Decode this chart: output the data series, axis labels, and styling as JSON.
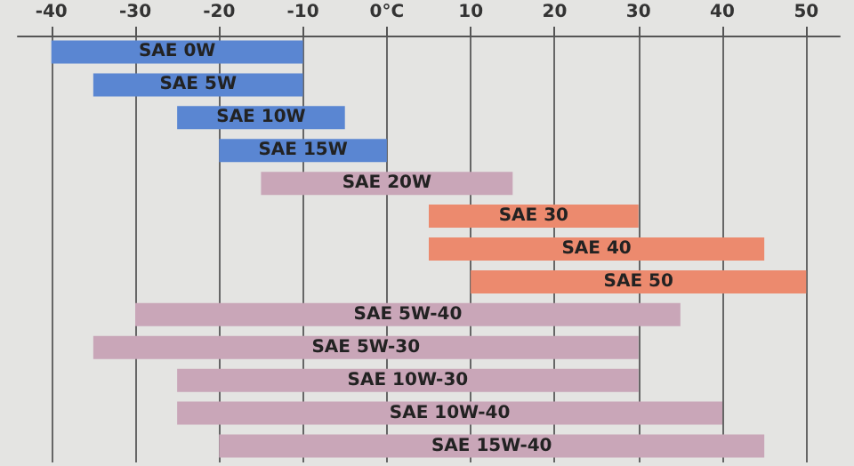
{
  "chart_data": {
    "type": "bar",
    "orientation": "horizontal",
    "categories": [
      "SAE 0W",
      "SAE 5W",
      "SAE 10W",
      "SAE 15W",
      "SAE 20W",
      "SAE 30",
      "SAE 40",
      "SAE 50",
      "SAE 5W-40",
      "SAE 5W-30",
      "SAE 10W-30",
      "SAE 10W-40",
      "SAE 15W-40"
    ],
    "base": [
      -40,
      -35,
      -25,
      -20,
      -15,
      5,
      5,
      10,
      -30,
      -35,
      -25,
      -25,
      -20
    ],
    "values": [
      30,
      25,
      20,
      20,
      30,
      25,
      40,
      40,
      65,
      65,
      55,
      65,
      65
    ],
    "colors": [
      "#5a86d2",
      "#5a86d2",
      "#5a86d2",
      "#5a86d2",
      "#c9a6b8",
      "#ec8a6e",
      "#ec8a6e",
      "#ec8a6e",
      "#c9a6b8",
      "#c9a6b8",
      "#c9a6b8",
      "#c9a6b8",
      "#c9a6b8"
    ],
    "xlim": [
      -44,
      54
    ],
    "xticks": [
      -40,
      -30,
      -20,
      -10,
      {
        "value": 0,
        "label": "0°C"
      },
      10,
      20,
      30,
      40,
      50
    ],
    "grid": "x",
    "tick_labels": "x"
  }
}
